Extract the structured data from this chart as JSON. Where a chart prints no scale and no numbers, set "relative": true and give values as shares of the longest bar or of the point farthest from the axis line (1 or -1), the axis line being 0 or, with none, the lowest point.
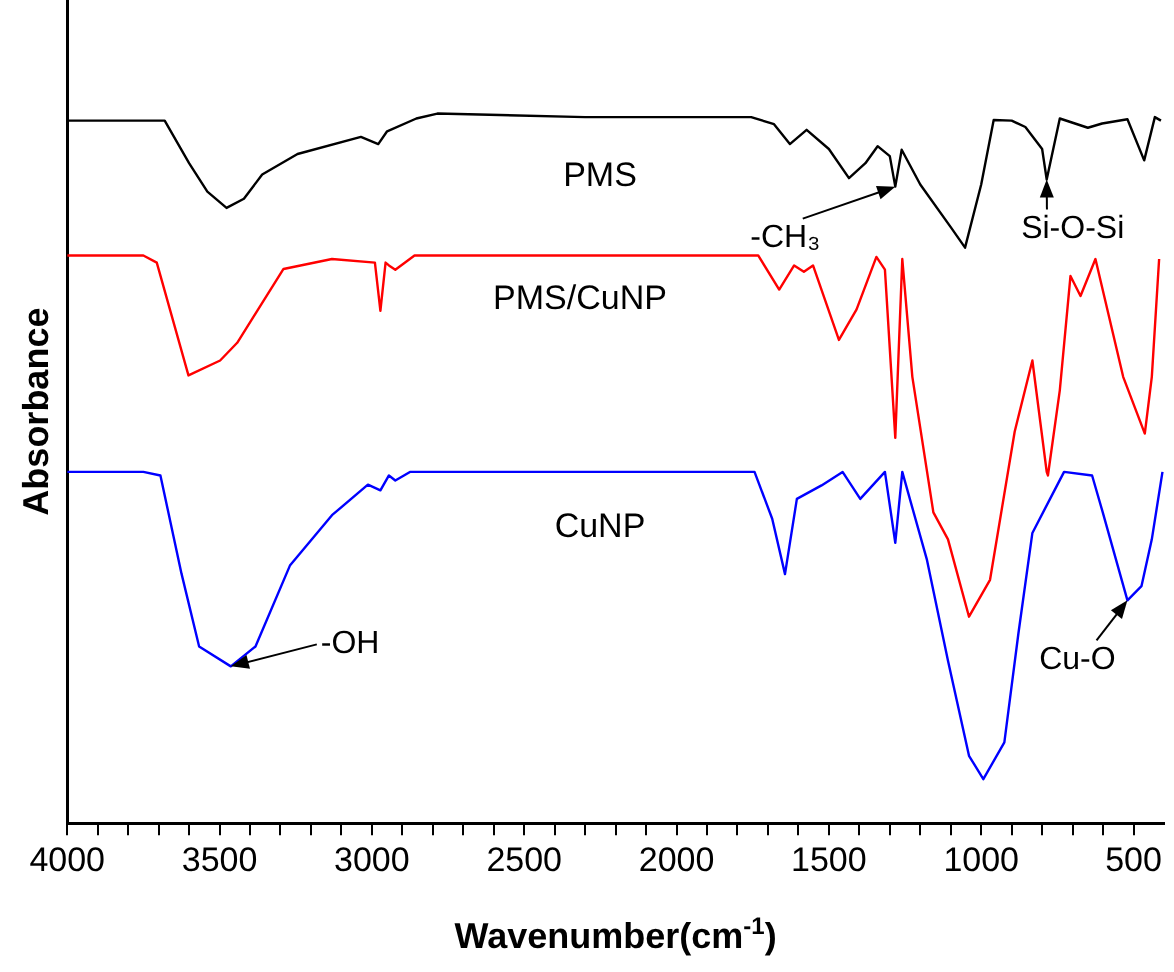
{
  "chart_data": {
    "type": "line",
    "relative": true,
    "xlabel": "Wavenumber(cm$^{-1}$)",
    "ylabel": "Absorbance",
    "xlim": [
      4000,
      400
    ],
    "xticks": [
      4000,
      {
        "value": 3900,
        "label": null
      },
      {
        "value": 3800,
        "label": null
      },
      {
        "value": 3700,
        "label": null
      },
      {
        "value": 3600,
        "label": null
      },
      3500,
      {
        "value": 3400,
        "label": null
      },
      {
        "value": 3300,
        "label": null
      },
      {
        "value": 3200,
        "label": null
      },
      {
        "value": 3100,
        "label": null
      },
      3000,
      {
        "value": 2900,
        "label": null
      },
      {
        "value": 2800,
        "label": null
      },
      {
        "value": 2700,
        "label": null
      },
      {
        "value": 2600,
        "label": null
      },
      2500,
      {
        "value": 2400,
        "label": null
      },
      {
        "value": 2300,
        "label": null
      },
      {
        "value": 2200,
        "label": null
      },
      {
        "value": 2100,
        "label": null
      },
      2000,
      {
        "value": 1900,
        "label": null
      },
      {
        "value": 1800,
        "label": null
      },
      {
        "value": 1700,
        "label": null
      },
      {
        "value": 1600,
        "label": null
      },
      1500,
      {
        "value": 1400,
        "label": null
      },
      {
        "value": 1300,
        "label": null
      },
      {
        "value": 1200,
        "label": null
      },
      {
        "value": 1100,
        "label": null
      },
      1000,
      {
        "value": 900,
        "label": null
      },
      {
        "value": 800,
        "label": null
      },
      {
        "value": 700,
        "label": null
      },
      {
        "value": 600,
        "label": null
      },
      500
    ],
    "grid": false,
    "legend": false,
    "marker": "none",
    "line_style": "solid",
    "series": [
      {
        "name": "PMS",
        "color": "#000000",
        "x": [
          4000,
          3800,
          3680,
          3600,
          3540,
          3477,
          3420,
          3360,
          3244,
          3036,
          2979,
          2950,
          2854,
          2785,
          2300,
          1755,
          1680,
          1628,
          1573,
          1500,
          1434,
          1380,
          1340,
          1300,
          1282,
          1261,
          1200,
          1100,
          1053,
          1000,
          959,
          900,
          855,
          800,
          785,
          742,
          650,
          603,
          520,
          465,
          430,
          410
        ],
        "values": [
          0.99,
          0.99,
          0.99,
          0.93,
          0.89,
          0.867,
          0.88,
          0.914,
          0.943,
          0.967,
          0.957,
          0.975,
          0.993,
          1.0,
          0.995,
          0.995,
          0.985,
          0.957,
          0.977,
          0.95,
          0.909,
          0.93,
          0.954,
          0.94,
          0.897,
          0.949,
          0.9,
          0.84,
          0.811,
          0.9,
          0.991,
          0.99,
          0.981,
          0.95,
          0.907,
          0.993,
          0.98,
          0.986,
          0.992,
          0.934,
          0.995,
          0.99
        ]
      },
      {
        "name": "PMS/CuNP",
        "color": "#ff0000",
        "x": [
          4000,
          3750,
          3706,
          3602,
          3498,
          3442,
          3290,
          3131,
          2990,
          2972,
          2955,
          2944,
          2923,
          2860,
          2300,
          1732,
          1663,
          1614,
          1582,
          1552,
          1467,
          1409,
          1344,
          1316,
          1282,
          1259,
          1226,
          1157,
          1109,
          1040,
          971,
          890,
          832,
          785,
          781,
          742,
          707,
          674,
          625,
          534,
          463,
          440,
          416
        ],
        "values": [
          0.8,
          0.8,
          0.79,
          0.631,
          0.652,
          0.677,
          0.781,
          0.795,
          0.79,
          0.722,
          0.79,
          0.786,
          0.78,
          0.8,
          0.8,
          0.8,
          0.752,
          0.786,
          0.777,
          0.786,
          0.681,
          0.724,
          0.798,
          0.78,
          0.543,
          0.795,
          0.629,
          0.438,
          0.4,
          0.291,
          0.343,
          0.552,
          0.652,
          0.495,
          0.49,
          0.61,
          0.771,
          0.743,
          0.795,
          0.629,
          0.549,
          0.629,
          0.795
        ]
      },
      {
        "name": "CuNP",
        "color": "#0000ff",
        "x": [
          4000,
          3750,
          3694,
          3625,
          3567,
          3463,
          3382,
          3269,
          3131,
          3013,
          2972,
          2944,
          2923,
          2875,
          2300,
          1744,
          1686,
          1644,
          1605,
          1524,
          1455,
          1397,
          1316,
          1282,
          1259,
          1178,
          1109,
          1040,
          993,
          924,
          878,
          832,
          774,
          728,
          636,
          601,
          520,
          474,
          440,
          405
        ],
        "values": [
          0.495,
          0.495,
          0.49,
          0.352,
          0.249,
          0.221,
          0.249,
          0.363,
          0.434,
          0.477,
          0.469,
          0.49,
          0.483,
          0.495,
          0.495,
          0.495,
          0.429,
          0.351,
          0.457,
          0.476,
          0.495,
          0.457,
          0.495,
          0.395,
          0.495,
          0.371,
          0.229,
          0.095,
          0.062,
          0.114,
          0.267,
          0.409,
          0.457,
          0.495,
          0.49,
          0.438,
          0.314,
          0.334,
          0.4,
          0.495
        ]
      }
    ],
    "annotations": [
      {
        "text": "-CH₃",
        "x": 1282,
        "y": 0.897
      },
      {
        "text": "Si-O-Si",
        "x": 785,
        "y": 0.907
      },
      {
        "text": "-OH",
        "x": 3463,
        "y": 0.221
      },
      {
        "text": "Cu-O",
        "x": 520,
        "y": 0.314
      }
    ]
  }
}
